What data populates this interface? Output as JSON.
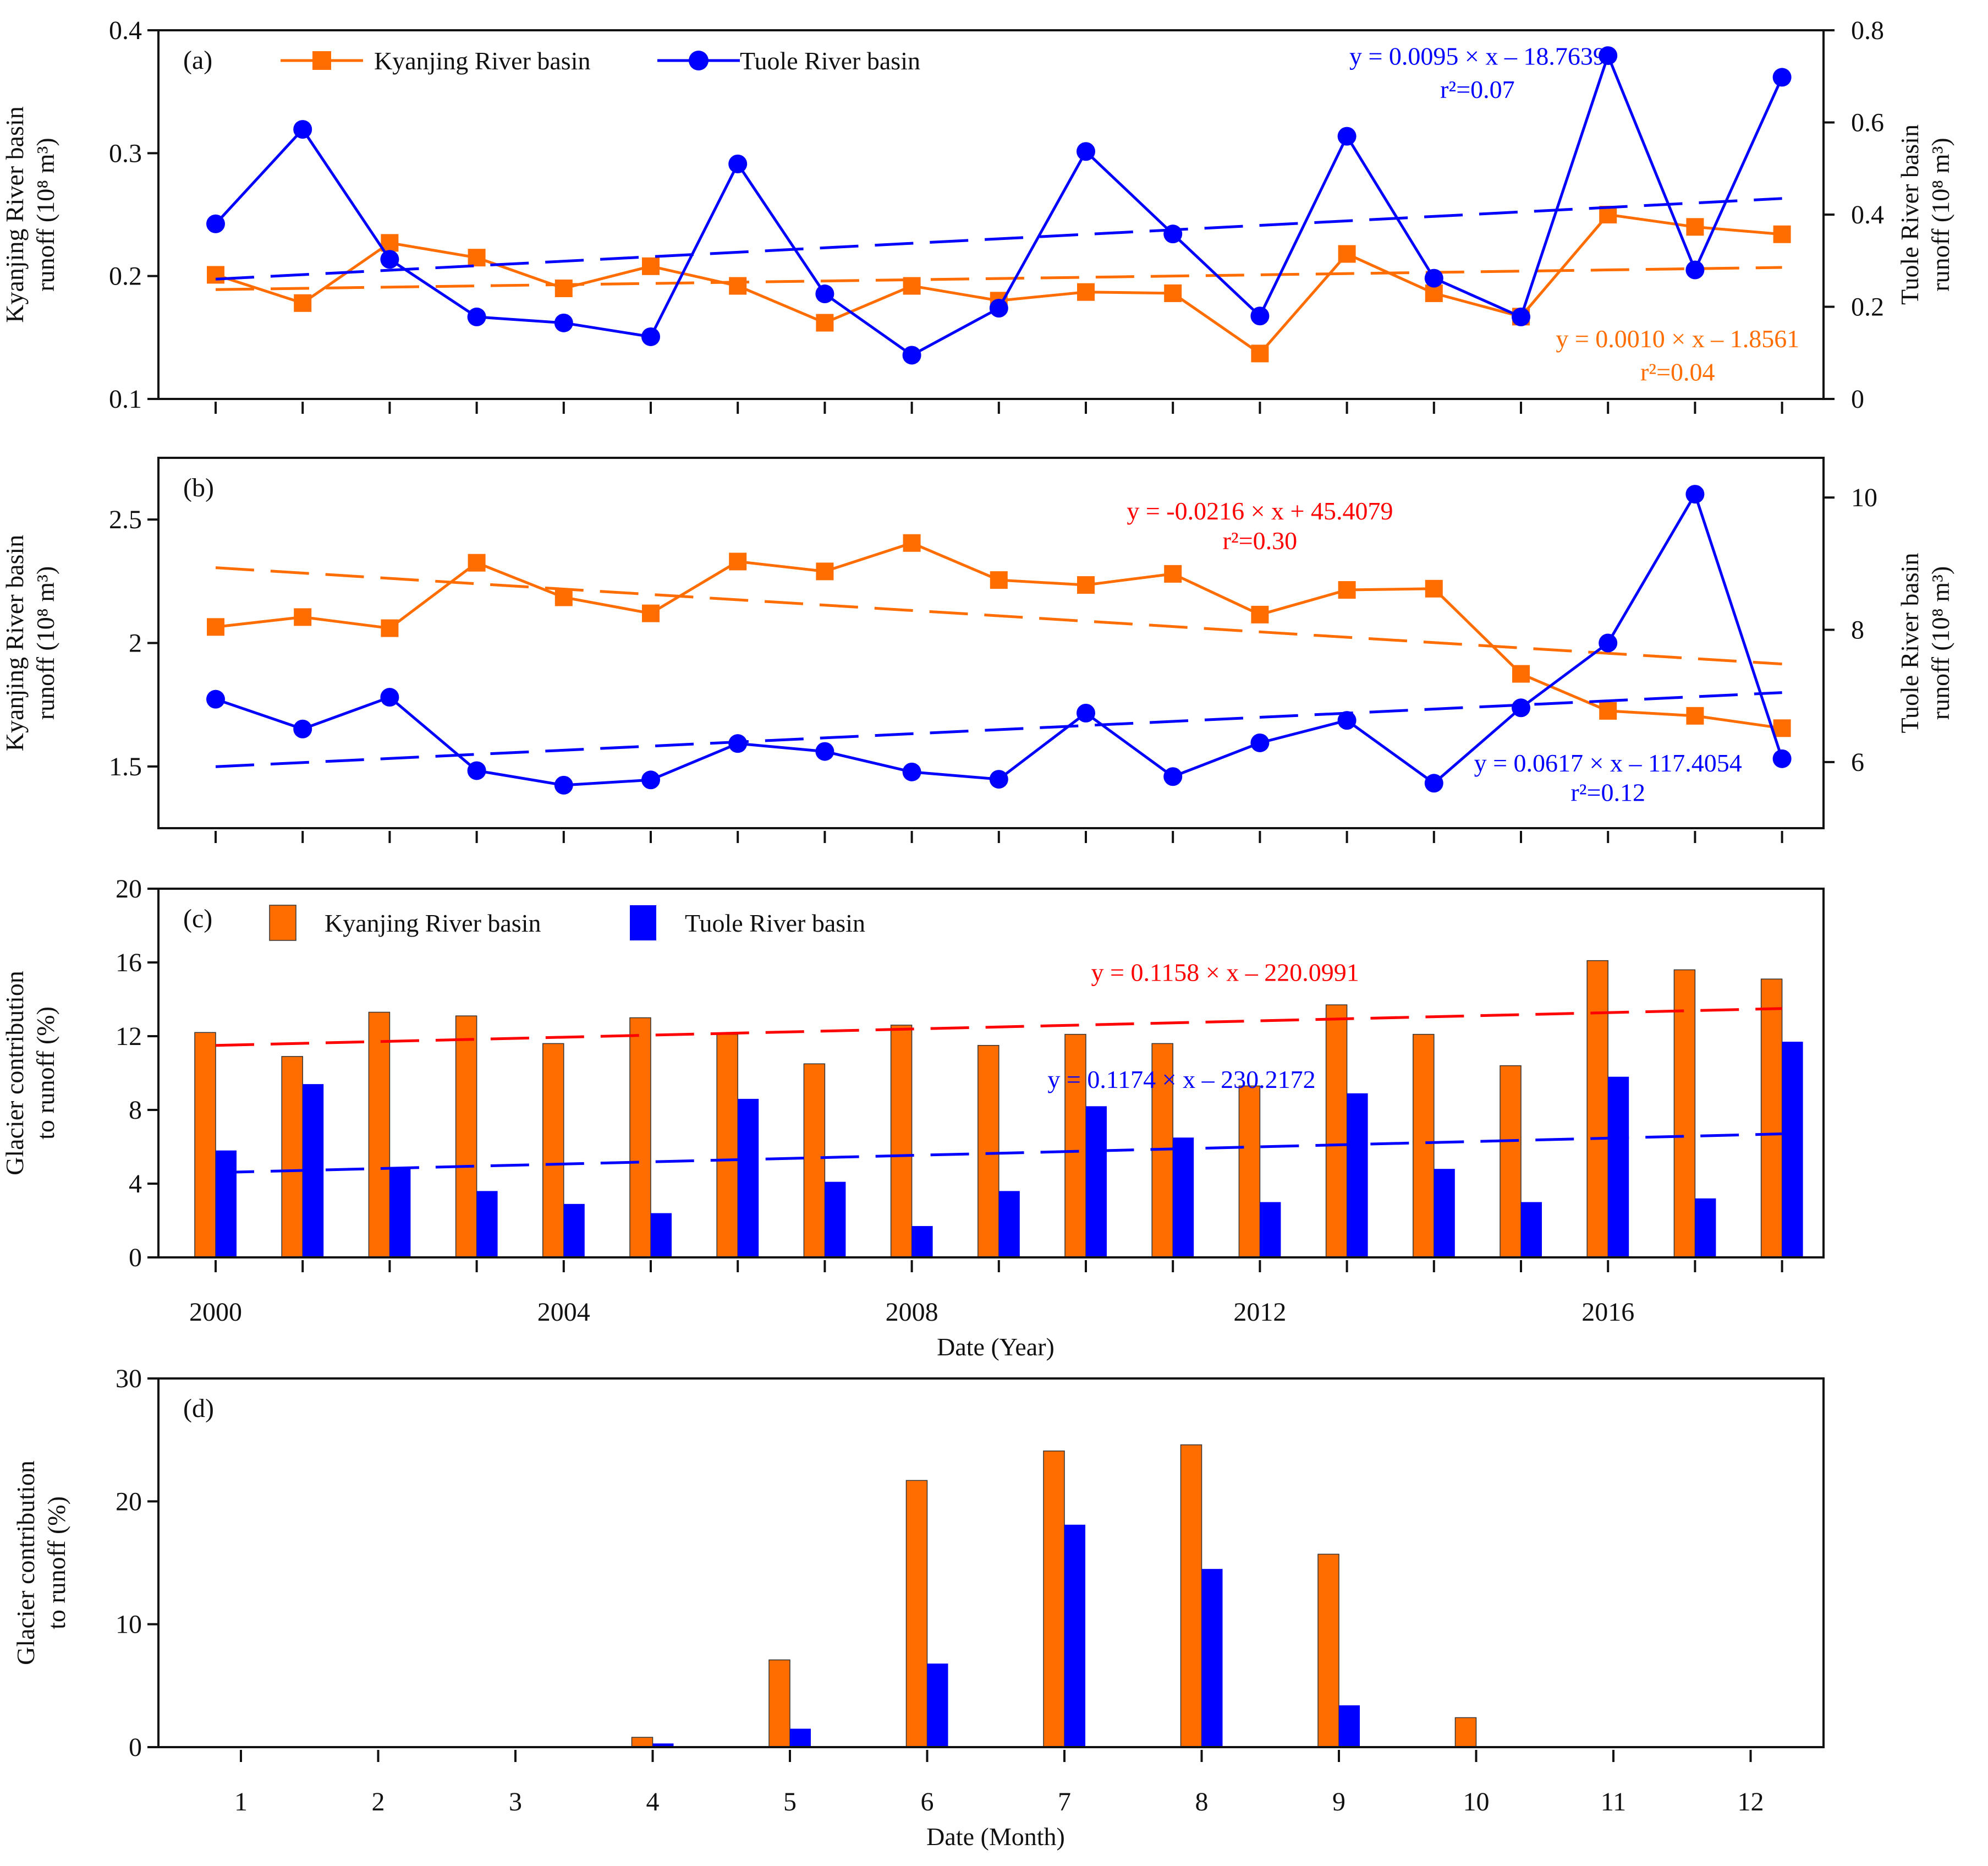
{
  "colors": {
    "kyanjing": "#FF6D00",
    "tuole": "#0000FF",
    "trend_red": "#FF0000",
    "axis": "#111111"
  },
  "chart_data": [
    {
      "id": "a",
      "type": "line",
      "panel_label": "(a)",
      "legend": [
        {
          "label": "Kyanjing River basin",
          "color": "#FF6D00",
          "marker": "square"
        },
        {
          "label": "Tuole River basin",
          "color": "#0000FF",
          "marker": "circle"
        }
      ],
      "x": [
        2000,
        2001,
        2002,
        2003,
        2004,
        2005,
        2006,
        2007,
        2008,
        2009,
        2010,
        2011,
        2012,
        2013,
        2014,
        2015,
        2016,
        2017,
        2018
      ],
      "ylabel_left": [
        "Kyanjing River basin",
        "runoff (10⁸ m³)"
      ],
      "ylabel_right": [
        "Tuole River basin",
        "runoff (10⁸ m³)"
      ],
      "ylim_left": [
        0.1,
        0.4
      ],
      "yticks_left": [
        "0.1",
        "0.2",
        "0.3",
        "0.4"
      ],
      "ylim_right": [
        0,
        0.8
      ],
      "yticks_right": [
        "0",
        "0.2",
        "0.4",
        "0.6",
        "0.8"
      ],
      "series": [
        {
          "name": "Kyanjing River basin",
          "axis": "left",
          "color": "#FF6D00",
          "marker": "square",
          "values": [
            0.201,
            0.178,
            0.227,
            0.215,
            0.19,
            0.208,
            0.192,
            0.162,
            0.192,
            0.18,
            0.187,
            0.186,
            0.137,
            0.218,
            0.186,
            0.167,
            0.25,
            0.24,
            0.234
          ],
          "trend": {
            "start": 0.189,
            "end": 0.207,
            "color": "#FF6D00"
          }
        },
        {
          "name": "Tuole River basin",
          "axis": "right",
          "color": "#0000FF",
          "marker": "circle",
          "values": [
            0.38,
            0.585,
            0.303,
            0.178,
            0.165,
            0.135,
            0.51,
            0.228,
            0.095,
            0.197,
            0.537,
            0.358,
            0.18,
            0.57,
            0.262,
            0.178,
            0.745,
            0.28,
            0.698
          ],
          "trend": {
            "start": 0.26,
            "end": 0.435,
            "color": "#0000FF"
          }
        }
      ],
      "annotations": [
        {
          "lines": [
            "y = 0.0095 × x – 18.7639",
            "r²=0.07"
          ],
          "color": "#0000FF",
          "x": 2014.5,
          "y_left": 0.372,
          "y_left2": 0.345
        },
        {
          "lines": [
            "y = 0.0010 × x – 1.8561",
            "r²=0.04"
          ],
          "color": "#FF6D00",
          "x": 2016.8,
          "y_left": 0.142,
          "y_left2": 0.115
        }
      ]
    },
    {
      "id": "b",
      "type": "line",
      "panel_label": "(b)",
      "x": [
        2000,
        2001,
        2002,
        2003,
        2004,
        2005,
        2006,
        2007,
        2008,
        2009,
        2010,
        2011,
        2012,
        2013,
        2014,
        2015,
        2016,
        2017,
        2018
      ],
      "ylabel_left": [
        "Kyanjing River basin",
        "runoff (10⁸ m³)"
      ],
      "ylabel_right": [
        "Tuole River basin",
        "runoff (10⁸ m³)"
      ],
      "ylim_left": [
        1.25,
        2.75
      ],
      "yticks_left": [
        "1.5",
        "2",
        "2.5"
      ],
      "yticks_left_values": [
        1.5,
        2.0,
        2.5
      ],
      "ylim_right": [
        5.0,
        10.6
      ],
      "yticks_right": [
        "6",
        "8",
        "10"
      ],
      "yticks_right_values": [
        6,
        8,
        10
      ],
      "series": [
        {
          "name": "Kyanjing River basin",
          "axis": "left",
          "color": "#FF6D00",
          "marker": "square",
          "values": [
            2.065,
            2.105,
            2.06,
            2.325,
            2.185,
            2.12,
            2.33,
            2.29,
            2.405,
            2.255,
            2.235,
            2.28,
            2.115,
            2.215,
            2.22,
            1.875,
            1.725,
            1.705,
            1.655
          ],
          "trend": {
            "start": 2.305,
            "end": 1.915,
            "color": "#FF6D00"
          }
        },
        {
          "name": "Tuole River basin",
          "axis": "right",
          "color": "#0000FF",
          "marker": "circle",
          "values": [
            6.95,
            6.5,
            6.98,
            5.87,
            5.65,
            5.73,
            6.28,
            6.16,
            5.85,
            5.74,
            6.74,
            5.78,
            6.29,
            6.63,
            5.68,
            6.82,
            7.8,
            10.05,
            6.05
          ],
          "trend": {
            "start": 5.93,
            "end": 7.05,
            "color": "#0000FF"
          }
        }
      ],
      "annotations": [
        {
          "lines": [
            "y = -0.0216 × x + 45.4079",
            "r²=0.30"
          ],
          "color": "#FF0000",
          "x": 2012.0,
          "y_left": 2.5,
          "y_left2": 2.38
        },
        {
          "lines": [
            "y = 0.0617 × x – 117.4054",
            "r²=0.12"
          ],
          "color": "#0000FF",
          "x": 2016.0,
          "y_left": 1.48,
          "y_left2": 1.36
        }
      ]
    },
    {
      "id": "c",
      "type": "bar",
      "panel_label": "(c)",
      "legend": [
        {
          "label": "Kyanjing River basin",
          "color": "#FF6D00"
        },
        {
          "label": "Tuole River basin",
          "color": "#0000FF"
        }
      ],
      "x": [
        2000,
        2001,
        2002,
        2003,
        2004,
        2005,
        2006,
        2007,
        2008,
        2009,
        2010,
        2011,
        2012,
        2013,
        2014,
        2015,
        2016,
        2017,
        2018
      ],
      "xticks": [
        "2000",
        "2004",
        "2008",
        "2012",
        "2016"
      ],
      "xlabel": "Date (Year)",
      "ylabel": [
        "Glacier contribution",
        "to runoff (%)"
      ],
      "ylim": [
        0,
        20
      ],
      "yticks": [
        "0",
        "4",
        "8",
        "12",
        "16",
        "20"
      ],
      "series": [
        {
          "name": "Kyanjing River basin",
          "color": "#FF6D00",
          "values": [
            12.2,
            10.9,
            13.3,
            13.1,
            11.6,
            13.0,
            12.1,
            10.5,
            12.6,
            11.5,
            12.1,
            11.6,
            9.3,
            13.7,
            12.1,
            10.4,
            16.1,
            15.6,
            15.1
          ],
          "trend": {
            "start": 11.5,
            "end": 13.5,
            "color": "#FF0000"
          }
        },
        {
          "name": "Tuole River basin",
          "color": "#0000FF",
          "values": [
            5.8,
            9.4,
            4.8,
            3.6,
            2.9,
            2.4,
            8.6,
            4.1,
            1.7,
            3.6,
            8.2,
            6.5,
            3.0,
            8.9,
            4.8,
            3.0,
            9.8,
            3.2,
            11.7
          ],
          "trend": {
            "start": 4.6,
            "end": 6.7,
            "color": "#0000FF"
          }
        }
      ],
      "annotations": [
        {
          "lines": [
            "y = 0.1158 × x – 220.0991"
          ],
          "color": "#FF0000",
          "x": 2011.6,
          "y": 15.0
        },
        {
          "lines": [
            "y = 0.1174 × x – 230.2172"
          ],
          "color": "#0000FF",
          "x": 2011.1,
          "y": 9.2
        }
      ]
    },
    {
      "id": "d",
      "type": "bar",
      "panel_label": "(d)",
      "x": [
        1,
        2,
        3,
        4,
        5,
        6,
        7,
        8,
        9,
        10,
        11,
        12
      ],
      "xticks": [
        "1",
        "2",
        "3",
        "4",
        "5",
        "6",
        "7",
        "8",
        "9",
        "10",
        "11",
        "12"
      ],
      "xlabel": "Date (Month)",
      "ylabel": [
        "Glacier contribution",
        "to runoff (%)"
      ],
      "ylim": [
        0,
        30
      ],
      "yticks": [
        "0",
        "10",
        "20",
        "30"
      ],
      "series": [
        {
          "name": "Kyanjing River basin",
          "color": "#FF6D00",
          "values": [
            0,
            0,
            0,
            0.8,
            7.1,
            21.7,
            24.1,
            24.6,
            15.7,
            2.4,
            0,
            0
          ]
        },
        {
          "name": "Tuole River basin",
          "color": "#0000FF",
          "values": [
            0,
            0,
            0,
            0.3,
            1.5,
            6.8,
            18.1,
            14.5,
            3.4,
            0,
            0,
            0
          ]
        }
      ]
    }
  ]
}
